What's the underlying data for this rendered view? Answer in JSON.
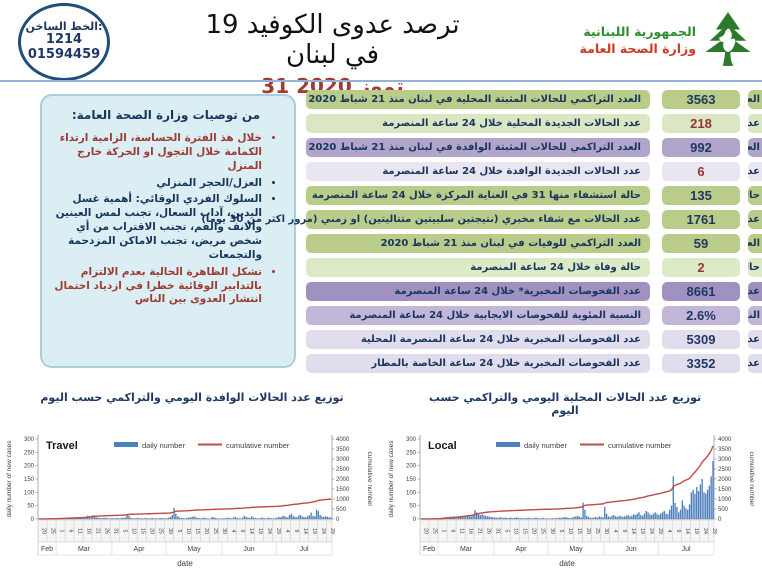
{
  "header": {
    "hotline": {
      "label": "الخط الساخن:",
      "number1": "1214",
      "number2": "01594459"
    },
    "title": "ترصد عدوى الكوفيد 19 في لبنان",
    "date": "31 تموز 2020",
    "ministry": {
      "line1": "الجمهورية اللبنانية",
      "line2": "وزارة الصحة العامة"
    },
    "logo": "cedar-tree",
    "colors": {
      "ministry_green": "#2f8f2f",
      "ministry_red": "#cd3a2a",
      "date_red": "#9f3b33",
      "divider_blue": "#95b3d7"
    }
  },
  "recommendations": {
    "title": "من توصيات وزارة الصحة العامة:",
    "items": [
      {
        "text": "خلال هذ الفترة الحساسة، الزامية ارتداء الكمامة خلال التجول او الحركة خارج المنزل",
        "color": "#9e3b32"
      },
      {
        "text": "العزل/الحجر المنزلي",
        "color": "#17365d"
      },
      {
        "text": "السلوك الفردي الوقائي: أهمية غسل اليدين، آداب السعال، تجنب لمس العينين والانف والفم، تجنب الاقتراب من أي شخص مريض، تجنب الاماكن المزدحمة والتجمعات",
        "color": "#17365d"
      },
      {
        "text": "تشكل الظاهرة الحالية بعدم الالتزام بالتدابير الوقائية خطرا في ازدياد احتمال انتشار العدوى بين الناس",
        "color": "#9e3b32"
      }
    ]
  },
  "stats": {
    "rows": [
      {
        "value": "3563",
        "label": "العدد التراكمي للحالات المثبتة المحلية في لبنان منذ 21 شباط 2020",
        "bg": "#b9cc8a",
        "value_color": "#1f3864"
      },
      {
        "value": "218",
        "label": "عدد الحالات الجديدة المحلية خلال 24 ساعة المنصرمة",
        "bg": "#dbe7c2",
        "value_color": "#943634"
      },
      {
        "value": "992",
        "label": "العدد التراكمي للحالات المثبتة الوافدة في لبنان منذ 21 شباط 2020",
        "bg": "#b2a5cb",
        "value_color": "#1f3864"
      },
      {
        "value": "6",
        "label": "عدد الحالات الجديدة الوافدة خلال 24 ساعة المنصرمة",
        "bg": "#e9e5f1",
        "value_color": "#943634"
      },
      {
        "value": "135",
        "label": "حالة استشفاء منها 31 في العناية المركزة خلال 24 ساعة المنصرمة",
        "bg": "#b9cc8a",
        "value_color": "#1f3864"
      },
      {
        "value": "1761",
        "label": "عدد الحالات مع شفاء مخبري (نتيجتين سلبيتين متتاليتين) او زمني (مرور اكثر من 30 يوما)",
        "bg": "#b9cc8a",
        "value_color": "#1f3864"
      },
      {
        "value": "59",
        "label": "العدد التراكمي للوفيات في لبنان منذ 21 شباط 2020",
        "bg": "#b9cc8a",
        "value_color": "#1f3864"
      },
      {
        "value": "2",
        "label": "حالة وفاة خلال 24 ساعة المنصرمة",
        "bg": "#ddeac6",
        "value_color": "#943634"
      },
      {
        "value": "8661",
        "label": "عدد الفحوصات المخبرية* خلال 24 ساعة المنصرمة",
        "bg": "#a091c0",
        "value_color": "#1f3864"
      },
      {
        "value": "2.6%",
        "label": "النسبة المئوية للفحوصات الايجابية خلال 24 ساعة المنصرمة",
        "bg": "#c2b7d8",
        "value_color": "#1f3864"
      },
      {
        "value": "5309",
        "label": "عدد الفحوصات المخبرية خلال 24 ساعة المنصرمة المحلية",
        "bg": "#e2ddec",
        "value_color": "#1f3864"
      },
      {
        "value": "3352",
        "label": "عدد الفحوصات المخبرية خلال 24 ساعة الخاصة بالمطار",
        "bg": "#e2ddec",
        "value_color": "#1f3864"
      }
    ]
  },
  "charts_section": {
    "left_caption": "توزيع عدد الحالات الوافدة اليومي والتراكمي حسب اليوم",
    "right_caption": "توزيع عدد الحالات المحلية اليومي والتراكمي حسب اليوم"
  },
  "chart_data": [
    {
      "type": "bar",
      "combo": "bar+line",
      "title": "Travel",
      "legend": [
        "daily number",
        "cumulative number"
      ],
      "xlabel": "date",
      "ylabel_left": "daily number of new cases",
      "ylabel_right": "cumulative number",
      "ylim_left": [
        0,
        300
      ],
      "yticks_left": [
        0,
        50,
        100,
        150,
        200,
        250,
        300
      ],
      "ylim_right": [
        0,
        4000
      ],
      "yticks_right": [
        0,
        500,
        1000,
        1500,
        2000,
        2500,
        3000,
        3500,
        4000
      ],
      "bar_color": "#4f81bd",
      "line_color": "#be4b48",
      "x_start": "Feb 20",
      "x_tick_labels": [
        "20",
        "25",
        "1",
        "6",
        "11",
        "16",
        "21",
        "26",
        "31",
        "5",
        "10",
        "15",
        "20",
        "25",
        "30",
        "5",
        "10",
        "15",
        "20",
        "25",
        "30",
        "4",
        "9",
        "14",
        "19",
        "24",
        "29",
        "4",
        "9",
        "14",
        "19",
        "24",
        "29"
      ],
      "x_tick_step_days": 5,
      "months": [
        {
          "label": "Feb",
          "span": 10
        },
        {
          "label": "Mar",
          "span": 31
        },
        {
          "label": "Apr",
          "span": 30
        },
        {
          "label": "May",
          "span": 31
        },
        {
          "label": "Jun",
          "span": 30
        },
        {
          "label": "Jul",
          "span": 31
        }
      ],
      "final_cumulative": 992,
      "daily": [
        2,
        1,
        0,
        1,
        2,
        1,
        0,
        3,
        2,
        2,
        2,
        3,
        4,
        3,
        2,
        5,
        4,
        3,
        6,
        4,
        5,
        3,
        4,
        6,
        5,
        4,
        7,
        12,
        10,
        8,
        14,
        9,
        6,
        5,
        4,
        3,
        4,
        5,
        3,
        2,
        3,
        3,
        2,
        4,
        3,
        2,
        5,
        4,
        6,
        18,
        12,
        4,
        3,
        2,
        3,
        4,
        2,
        3,
        2,
        4,
        3,
        2,
        3,
        4,
        2,
        3,
        2,
        3,
        4,
        3,
        2,
        3,
        5,
        8,
        15,
        42,
        20,
        10,
        6,
        4,
        3,
        2,
        4,
        5,
        6,
        8,
        10,
        6,
        4,
        3,
        2,
        5,
        4,
        3,
        2,
        1,
        8,
        6,
        4,
        3,
        2,
        1,
        3,
        2,
        4,
        5,
        3,
        2,
        6,
        8,
        4,
        3,
        2,
        5,
        12,
        8,
        6,
        4,
        10,
        6,
        4,
        3,
        2,
        4,
        6,
        3,
        2,
        5,
        4,
        3,
        2,
        3,
        5,
        8,
        6,
        10,
        12,
        8,
        6,
        15,
        20,
        12,
        8,
        6,
        12,
        15,
        10,
        8,
        6,
        10,
        14,
        24,
        12,
        10,
        35,
        30,
        15,
        10,
        8,
        10,
        9,
        6,
        6
      ]
    },
    {
      "type": "bar",
      "combo": "bar+line",
      "title": "Local",
      "legend": [
        "daily number",
        "cumulative number"
      ],
      "xlabel": "date",
      "ylabel_left": "daily number of new cases",
      "ylabel_right": "cumulative number",
      "ylim_left": [
        0,
        300
      ],
      "yticks_left": [
        0,
        50,
        100,
        150,
        200,
        250,
        300
      ],
      "ylim_right": [
        0,
        4000
      ],
      "yticks_right": [
        0,
        500,
        1000,
        1500,
        2000,
        2500,
        3000,
        3500,
        4000
      ],
      "bar_color": "#4f81bd",
      "line_color": "#be4b48",
      "x_start": "Feb 20",
      "x_tick_labels": [
        "20",
        "25",
        "1",
        "6",
        "11",
        "16",
        "21",
        "26",
        "31",
        "5",
        "10",
        "15",
        "20",
        "25",
        "30",
        "5",
        "10",
        "15",
        "20",
        "25",
        "30",
        "4",
        "9",
        "14",
        "19",
        "24",
        "29",
        "4",
        "9",
        "14",
        "19",
        "24",
        "29"
      ],
      "x_tick_step_days": 5,
      "months": [
        {
          "label": "Feb",
          "span": 10
        },
        {
          "label": "Mar",
          "span": 31
        },
        {
          "label": "Apr",
          "span": 30
        },
        {
          "label": "May",
          "span": 31
        },
        {
          "label": "Jun",
          "span": 30
        },
        {
          "label": "Jul",
          "span": 31
        }
      ],
      "final_cumulative": 3563,
      "daily": [
        1,
        0,
        1,
        1,
        0,
        2,
        1,
        1,
        2,
        3,
        3,
        4,
        5,
        6,
        8,
        7,
        9,
        8,
        10,
        9,
        8,
        10,
        12,
        11,
        13,
        12,
        14,
        11,
        10,
        15,
        33,
        25,
        20,
        15,
        18,
        14,
        12,
        10,
        9,
        8,
        7,
        6,
        5,
        4,
        7,
        5,
        4,
        6,
        3,
        4,
        5,
        3,
        4,
        6,
        5,
        3,
        4,
        2,
        3,
        4,
        5,
        3,
        2,
        4,
        5,
        3,
        2,
        3,
        4,
        2,
        3,
        1,
        2,
        3,
        2,
        4,
        3,
        5,
        4,
        6,
        8,
        6,
        4,
        3,
        5,
        8,
        10,
        12,
        8,
        6,
        62,
        35,
        12,
        8,
        5,
        4,
        6,
        8,
        5,
        10,
        8,
        6,
        45,
        20,
        10,
        8,
        12,
        15,
        10,
        8,
        12,
        10,
        8,
        10,
        12,
        15,
        10,
        12,
        18,
        15,
        20,
        25,
        15,
        12,
        20,
        30,
        25,
        18,
        15,
        20,
        25,
        20,
        15,
        20,
        25,
        30,
        20,
        18,
        35,
        50,
        160,
        60,
        45,
        25,
        35,
        70,
        50,
        40,
        35,
        55,
        100,
        110,
        95,
        120,
        105,
        130,
        150,
        100,
        95,
        110,
        125,
        160,
        218
      ]
    }
  ]
}
